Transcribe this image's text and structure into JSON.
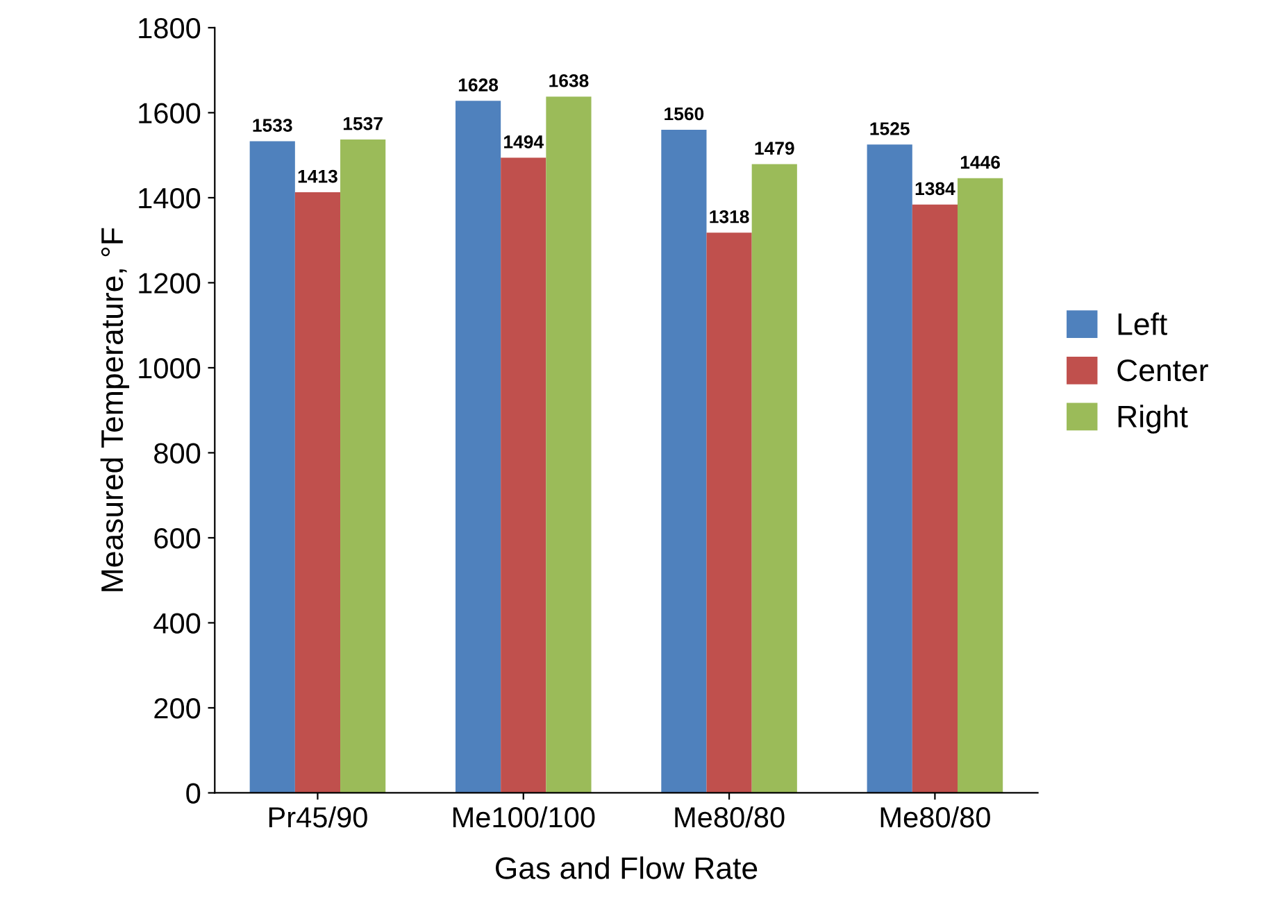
{
  "chart_data": {
    "type": "bar",
    "xlabel": "Gas and Flow Rate",
    "ylabel": "Measured Temperature, °F",
    "categories": [
      "Pr45/90",
      "Me100/100",
      "Me80/80",
      "Me80/80"
    ],
    "series": [
      {
        "name": "Left",
        "color": "#4f81bd",
        "values": [
          1533,
          1628,
          1560,
          1525
        ]
      },
      {
        "name": "Center",
        "color": "#c0504d",
        "values": [
          1413,
          1494,
          1318,
          1384
        ]
      },
      {
        "name": "Right",
        "color": "#9bbb59",
        "values": [
          1537,
          1638,
          1479,
          1446
        ]
      }
    ],
    "ylim": [
      0,
      1800
    ],
    "yticks": [
      0,
      200,
      400,
      600,
      800,
      1000,
      1200,
      1400,
      1600,
      1800
    ],
    "grid": false,
    "legend": "right",
    "data_labels": true
  }
}
